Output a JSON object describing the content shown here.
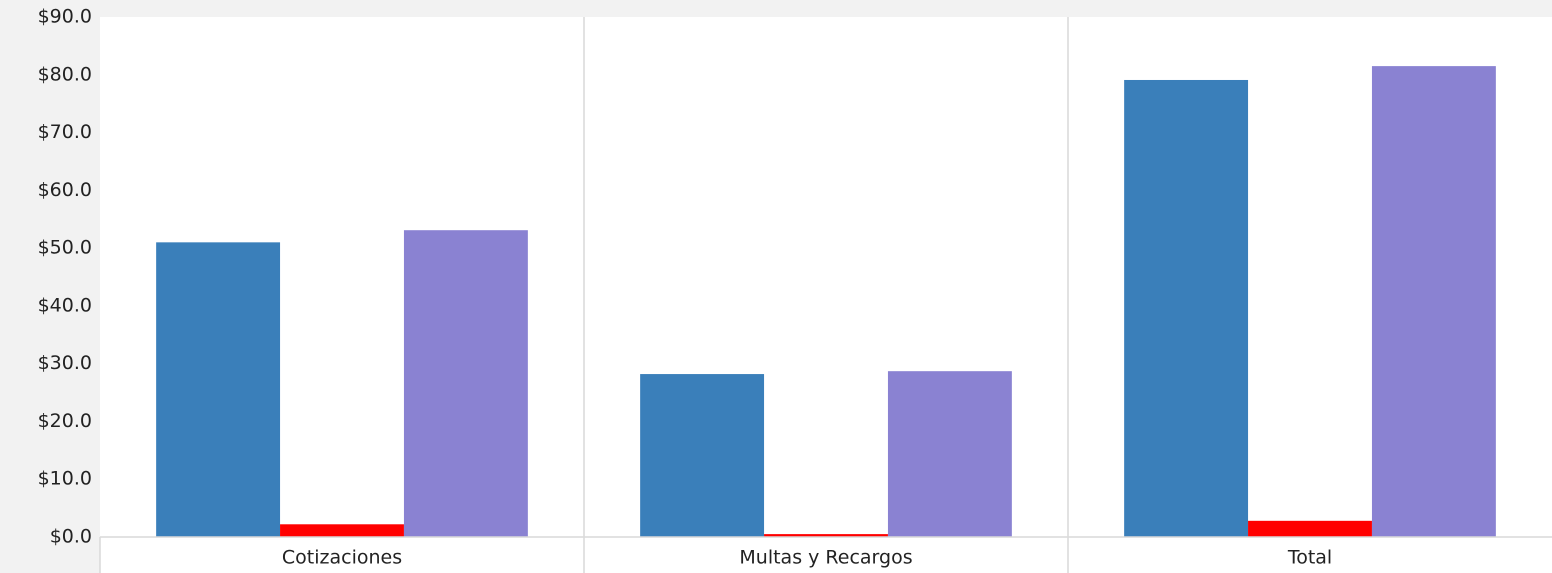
{
  "chart_data": {
    "type": "bar",
    "categories": [
      "Cotizaciones",
      "Multas y Recargos",
      "Total"
    ],
    "series": [
      {
        "color": "#3a7fba",
        "values": [
          51.0,
          28.2,
          79.1
        ]
      },
      {
        "color": "#ff0000",
        "values": [
          2.2,
          0.5,
          2.8
        ]
      },
      {
        "color": "#8a82d2",
        "values": [
          53.1,
          28.7,
          81.5
        ]
      }
    ],
    "ylim": [
      0,
      90
    ],
    "yticks": [
      {
        "value": 0,
        "label": "$0.0"
      },
      {
        "value": 10,
        "label": "$10.0"
      },
      {
        "value": 20,
        "label": "$20.0"
      },
      {
        "value": 30,
        "label": "$30.0"
      },
      {
        "value": 40,
        "label": "$40.0"
      },
      {
        "value": 50,
        "label": "$50.0"
      },
      {
        "value": 60,
        "label": "$60.0"
      },
      {
        "value": 70,
        "label": "$70.0"
      },
      {
        "value": 80,
        "label": "$80.0"
      },
      {
        "value": 90,
        "label": "$90.0"
      }
    ],
    "grid": false
  }
}
